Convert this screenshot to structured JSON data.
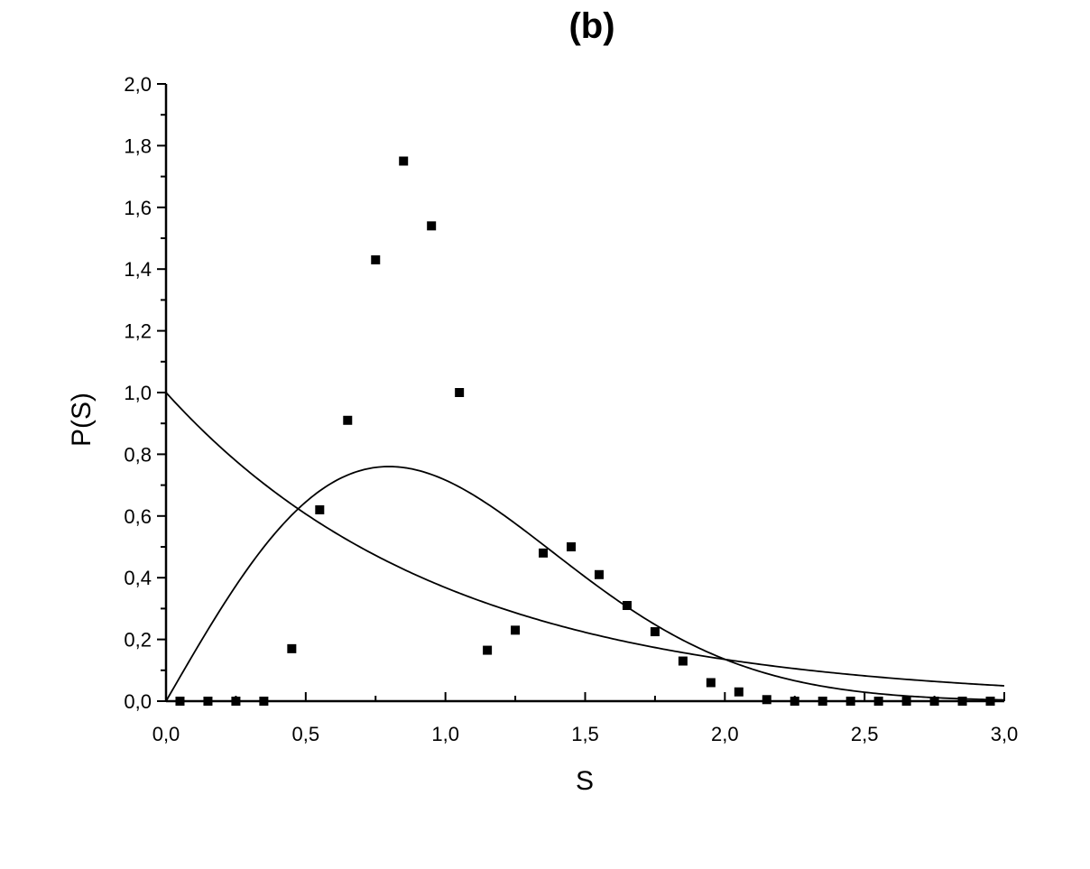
{
  "chart_data": {
    "type": "scatter",
    "title": "(b)",
    "xlabel": "S",
    "ylabel": "P(S)",
    "xlim": [
      0,
      3
    ],
    "ylim": [
      0,
      2
    ],
    "x_ticks": [
      "0,0",
      "0,5",
      "1,0",
      "1,5",
      "2,0",
      "2,5",
      "3,0"
    ],
    "y_ticks": [
      "0,0",
      "0,2",
      "0,4",
      "0,6",
      "0,8",
      "1,0",
      "1,2",
      "1,4",
      "1,6",
      "1,8",
      "2,0"
    ],
    "grid": false,
    "legend": "none",
    "series": [
      {
        "kind": "points",
        "marker": "square",
        "x": [
          0.05,
          0.15,
          0.25,
          0.35,
          0.45,
          0.55,
          0.65,
          0.75,
          0.85,
          0.95,
          1.05,
          1.15,
          1.25,
          1.35,
          1.45,
          1.55,
          1.65,
          1.75,
          1.85,
          1.95,
          2.05,
          2.15,
          2.25,
          2.35,
          2.45,
          2.55,
          2.65,
          2.75,
          2.85,
          2.95
        ],
        "y": [
          0.0,
          0.0,
          0.0,
          0.0,
          0.17,
          0.62,
          0.91,
          1.43,
          1.75,
          1.54,
          1.0,
          0.165,
          0.23,
          0.48,
          0.5,
          0.41,
          0.31,
          0.225,
          0.13,
          0.06,
          0.03,
          0.005,
          0.0,
          0.0,
          0.0,
          0.0,
          0.0,
          0.0,
          0.0,
          0.0
        ]
      },
      {
        "kind": "curve",
        "formula": "exp(-s)",
        "x_range": [
          0,
          3
        ]
      },
      {
        "kind": "curve",
        "formula": "(pi/2) s exp(-pi s^2 / 4)",
        "x_range": [
          0,
          3
        ]
      }
    ],
    "colors": {
      "axis": "#000000",
      "marker": "#000000",
      "curve": "#000000"
    }
  }
}
